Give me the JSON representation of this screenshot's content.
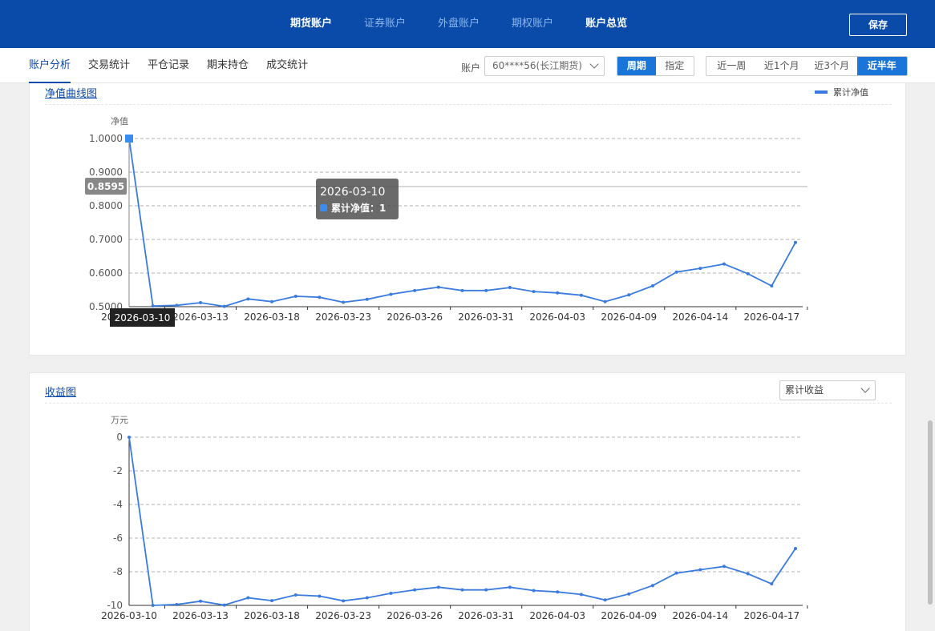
{
  "header": {
    "tabs": [
      {
        "label": "期货账户",
        "state": "active"
      },
      {
        "label": "证券账户",
        "state": "inactive"
      },
      {
        "label": "外盘账户",
        "state": "inactive"
      },
      {
        "label": "期权账户",
        "state": "inactive"
      },
      {
        "label": "账户总览",
        "state": "bright"
      }
    ],
    "save_label": "保存"
  },
  "subnav": {
    "tabs": [
      "账户分析",
      "交易统计",
      "平仓记录",
      "期末持仓",
      "成交统计"
    ],
    "active_index": 0
  },
  "filters": {
    "account_label": "账户",
    "account_value": "60****56(长江期货)",
    "mode_options": [
      "周期",
      "指定"
    ],
    "mode_selected": 0,
    "period_options": [
      "近一周",
      "近1个月",
      "近3个月",
      "近半年"
    ],
    "period_selected": 3
  },
  "net_value_panel": {
    "title": "净值曲线图",
    "legend_label": "累计净值",
    "ylabel": "净值",
    "crosshair_y_label": "0.8595",
    "crosshair_x_label": "2026-03-10",
    "tooltip": {
      "date": "2026-03-10",
      "series_label": "累计净值：",
      "value": "1"
    }
  },
  "profit_panel": {
    "title": "收益图",
    "select_value": "累计收益",
    "ylabel": "万元"
  },
  "colors": {
    "brand": "#0a4aa8",
    "accent": "#1976d8",
    "line": "#3a7be0"
  },
  "chart_data": [
    {
      "type": "line",
      "series": [
        {
          "name": "累计净值",
          "values": [
            1.0,
            0.502,
            0.504,
            0.512,
            0.501,
            0.523,
            0.515,
            0.531,
            0.528,
            0.513,
            0.522,
            0.537,
            0.548,
            0.558,
            0.548,
            0.548,
            0.557,
            0.545,
            0.541,
            0.534,
            0.515,
            0.535,
            0.562,
            0.603,
            0.614,
            0.627,
            0.598,
            0.562,
            0.691
          ]
        }
      ],
      "x_tick_labels": [
        "2026-03-10",
        "2026-03-13",
        "2026-03-18",
        "2026-03-23",
        "2026-03-26",
        "2026-03-31",
        "2026-04-03",
        "2026-04-09",
        "2026-04-14",
        "2026-04-17"
      ],
      "y_tick_labels": [
        "1.0000",
        "0.9000",
        "0.8000",
        "0.7000",
        "0.6000",
        "0.5000"
      ],
      "ylabel": "净值",
      "ylim": [
        0.5,
        1.0
      ],
      "grid": true,
      "legend_position": "top-right"
    },
    {
      "type": "line",
      "series": [
        {
          "values": [
            0,
            -10.0,
            -9.95,
            -9.75,
            -9.98,
            -9.55,
            -9.72,
            -9.38,
            -9.45,
            -9.73,
            -9.55,
            -9.28,
            -9.08,
            -8.92,
            -9.08,
            -9.08,
            -8.92,
            -9.12,
            -9.2,
            -9.35,
            -9.68,
            -9.32,
            -8.82,
            -8.08,
            -7.88,
            -7.68,
            -8.12,
            -8.72,
            -6.62
          ]
        }
      ],
      "x_tick_labels": [
        "2026-03-10",
        "2026-03-13",
        "2026-03-18",
        "2026-03-23",
        "2026-03-26",
        "2026-03-31",
        "2026-04-03",
        "2026-04-09",
        "2026-04-14",
        "2026-04-17"
      ],
      "y_tick_labels": [
        "0",
        "-2",
        "-4",
        "-6",
        "-8",
        "-10"
      ],
      "ylabel": "万元",
      "ylim": [
        -10,
        0
      ],
      "grid": true
    }
  ]
}
